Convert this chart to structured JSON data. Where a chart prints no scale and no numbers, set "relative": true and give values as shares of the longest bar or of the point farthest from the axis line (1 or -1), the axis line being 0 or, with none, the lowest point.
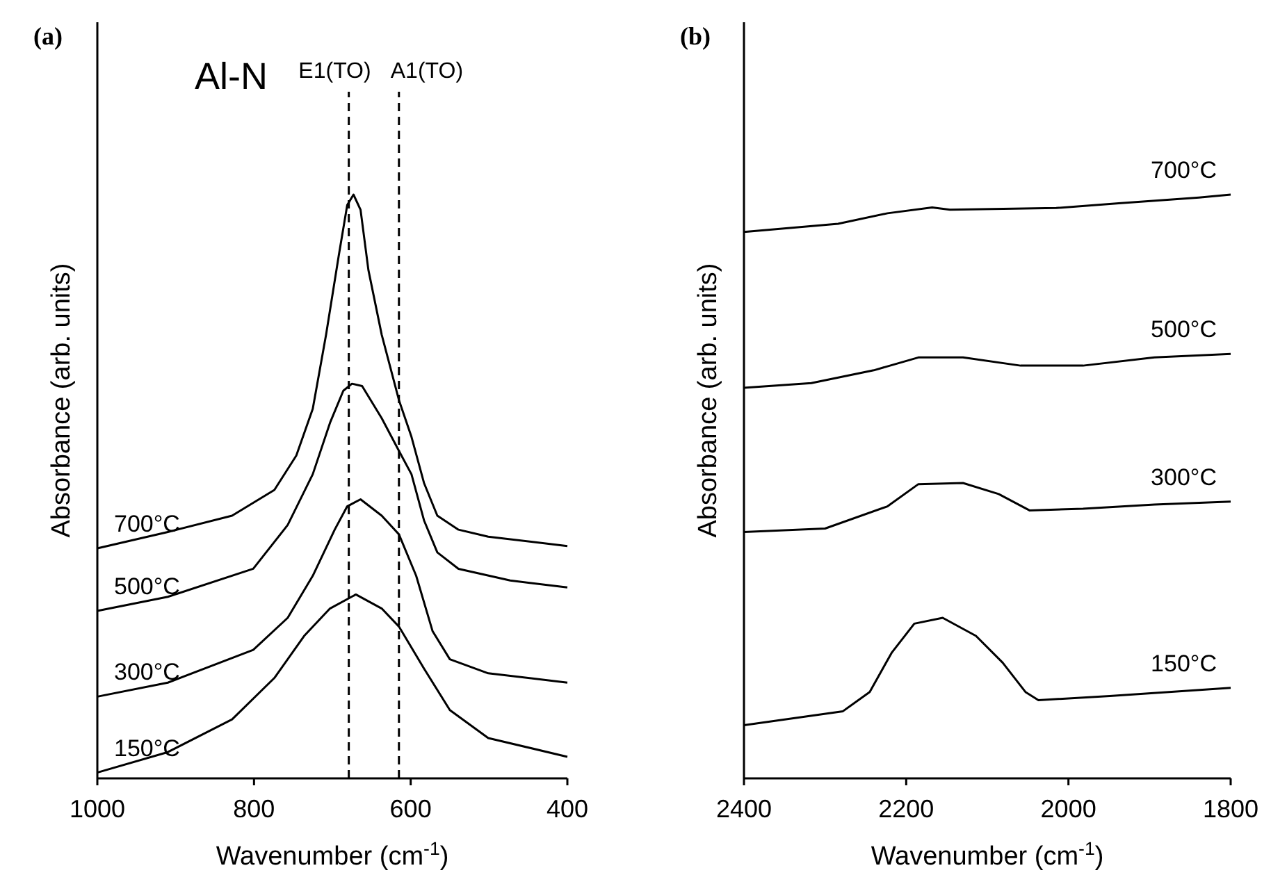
{
  "chart_data": [
    {
      "type": "line",
      "title": "(a)",
      "xlabel": "Wavenumber (cm$^{-1}$)",
      "ylabel": "Absorbance (arb. units)",
      "relative": true,
      "xlim": [
        1000,
        400
      ],
      "xticks": [
        1000,
        800,
        600,
        400
      ],
      "tick_labels": "x",
      "legend": false,
      "annotations": [
        "Al-N"
      ],
      "ref_lines": [
        {
          "axis": "x",
          "value": 679,
          "label": "E1(TO)",
          "line_style": "dashed",
          "color": "#000000"
        },
        {
          "axis": "x",
          "value": 615,
          "label": "A1(TO)",
          "line_style": "dashed",
          "color": "#000000"
        }
      ],
      "series": [
        {
          "name": "700°C",
          "color": "#000000",
          "x": [
            1000,
            910,
            828,
            774,
            746,
            725,
            708,
            692,
            681,
            673,
            664,
            654,
            637,
            615,
            599,
            583,
            566,
            539,
            501,
            400
          ],
          "values": [
            0.394,
            0.422,
            0.45,
            0.494,
            0.553,
            0.633,
            0.76,
            0.894,
            0.982,
            1.0,
            0.974,
            0.871,
            0.76,
            0.648,
            0.585,
            0.506,
            0.45,
            0.426,
            0.414,
            0.398
          ]
        },
        {
          "name": "500°C",
          "color": "#000000",
          "x": [
            1000,
            910,
            801,
            757,
            725,
            703,
            686,
            675,
            662,
            637,
            615,
            599,
            583,
            566,
            539,
            473,
            400
          ],
          "values": [
            0.287,
            0.311,
            0.359,
            0.434,
            0.521,
            0.609,
            0.664,
            0.676,
            0.672,
            0.617,
            0.561,
            0.521,
            0.442,
            0.387,
            0.359,
            0.339,
            0.327
          ]
        },
        {
          "name": "300°C",
          "color": "#000000",
          "x": [
            1000,
            910,
            801,
            757,
            725,
            697,
            681,
            664,
            637,
            615,
            593,
            572,
            550,
            501,
            400
          ],
          "values": [
            0.14,
            0.164,
            0.22,
            0.275,
            0.347,
            0.426,
            0.466,
            0.478,
            0.45,
            0.418,
            0.347,
            0.252,
            0.204,
            0.18,
            0.164
          ]
        },
        {
          "name": "150°C",
          "color": "#000000",
          "x": [
            1000,
            910,
            828,
            774,
            736,
            703,
            670,
            637,
            615,
            583,
            550,
            501,
            400
          ],
          "values": [
            0.01,
            0.045,
            0.101,
            0.172,
            0.244,
            0.291,
            0.315,
            0.291,
            0.26,
            0.188,
            0.117,
            0.069,
            0.037
          ]
        }
      ]
    },
    {
      "type": "line",
      "title": "(b)",
      "xlabel": "Wavenumber (cm$^{-1}$)",
      "ylabel": "Absorbance (arb. units)",
      "relative": true,
      "xlim": [
        2400,
        1800
      ],
      "xticks": [
        2400,
        2200,
        2000,
        1800
      ],
      "tick_labels": "x",
      "legend": false,
      "series": [
        {
          "name": "700°C",
          "color": "#000000",
          "x": [
            2400,
            2284,
            2223,
            2168,
            2146,
            2015,
            1938,
            1839,
            1800
          ],
          "values": [
            0.936,
            0.95,
            0.968,
            0.978,
            0.974,
            0.977,
            0.985,
            0.995,
            1.0
          ]
        },
        {
          "name": "500°C",
          "color": "#000000",
          "x": [
            2400,
            2317,
            2240,
            2185,
            2130,
            2059,
            1982,
            1894,
            1800
          ],
          "values": [
            0.669,
            0.677,
            0.699,
            0.721,
            0.721,
            0.707,
            0.707,
            0.721,
            0.727
          ]
        },
        {
          "name": "300°C",
          "color": "#000000",
          "x": [
            2400,
            2300,
            2223,
            2185,
            2130,
            2086,
            2048,
            1982,
            1894,
            1800
          ],
          "values": [
            0.422,
            0.428,
            0.466,
            0.504,
            0.506,
            0.487,
            0.459,
            0.462,
            0.469,
            0.474
          ]
        },
        {
          "name": "150°C",
          "color": "#000000",
          "x": [
            2400,
            2278,
            2245,
            2218,
            2190,
            2155,
            2114,
            2081,
            2053,
            2037,
            1949,
            1800
          ],
          "values": [
            0.091,
            0.115,
            0.148,
            0.215,
            0.265,
            0.275,
            0.244,
            0.198,
            0.148,
            0.134,
            0.141,
            0.155
          ]
        }
      ]
    }
  ]
}
